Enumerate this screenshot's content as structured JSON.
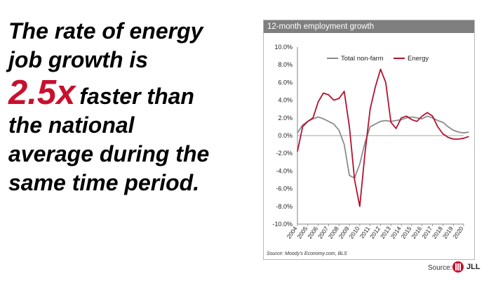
{
  "headline": {
    "line1": "The rate of energy",
    "line2": "job growth is",
    "highlight": "2.5x",
    "line3_rest": "faster than",
    "line4": "the national",
    "line5": "average during the",
    "line6": "same time period."
  },
  "colors": {
    "accent": "#c8102e",
    "header_bg": "#7f7f7f",
    "nonfarm": "#8c8c8c",
    "energy": "#b3122e"
  },
  "chart_source": "Source: Moody's Economy.com, BLS",
  "footer": {
    "source_label": "Source:",
    "brand": "JLL"
  },
  "chart_data": {
    "type": "line",
    "title": "12-month employment growth",
    "xlabel": "",
    "ylabel": "",
    "ylim": [
      -0.1,
      0.1
    ],
    "yticks": [
      "10.0%",
      "8.0%",
      "6.0%",
      "4.0%",
      "2.0%",
      "0.0%",
      "-2.0%",
      "-4.0%",
      "-6.0%",
      "-8.0%",
      "-10.0%"
    ],
    "xticks": [
      "2004",
      "2005",
      "2006",
      "2007",
      "2008",
      "2009",
      "2010",
      "2011",
      "2012",
      "2013",
      "2014",
      "2015",
      "2016",
      "2017",
      "2018",
      "2019",
      "2020"
    ],
    "legend": "top",
    "grid": false,
    "x": [
      2004.0,
      2004.5,
      2005.0,
      2005.5,
      2006.0,
      2006.5,
      2007.0,
      2007.5,
      2008.0,
      2008.5,
      2009.0,
      2009.5,
      2010.0,
      2010.5,
      2011.0,
      2011.5,
      2012.0,
      2012.5,
      2013.0,
      2013.5,
      2014.0,
      2014.5,
      2015.0,
      2015.5,
      2016.0,
      2016.5,
      2017.0,
      2017.5,
      2018.0,
      2018.5,
      2019.0,
      2019.5,
      2020.0,
      2020.5
    ],
    "series": [
      {
        "name": "Total non-farm",
        "values": [
          0.003,
          0.012,
          0.016,
          0.019,
          0.021,
          0.019,
          0.016,
          0.013,
          0.006,
          -0.01,
          -0.045,
          -0.048,
          -0.032,
          -0.008,
          0.01,
          0.013,
          0.016,
          0.017,
          0.016,
          0.017,
          0.018,
          0.02,
          0.021,
          0.02,
          0.019,
          0.022,
          0.02,
          0.017,
          0.015,
          0.01,
          0.006,
          0.004,
          0.003,
          0.004
        ]
      },
      {
        "name": "Energy",
        "values": [
          -0.018,
          0.01,
          0.016,
          0.02,
          0.038,
          0.048,
          0.046,
          0.04,
          0.042,
          0.05,
          0.01,
          -0.05,
          -0.08,
          -0.02,
          0.03,
          0.055,
          0.075,
          0.06,
          0.015,
          0.008,
          0.02,
          0.022,
          0.018,
          0.016,
          0.022,
          0.026,
          0.022,
          0.01,
          0.002,
          -0.002,
          -0.004,
          -0.004,
          -0.003,
          -0.001
        ]
      }
    ]
  }
}
